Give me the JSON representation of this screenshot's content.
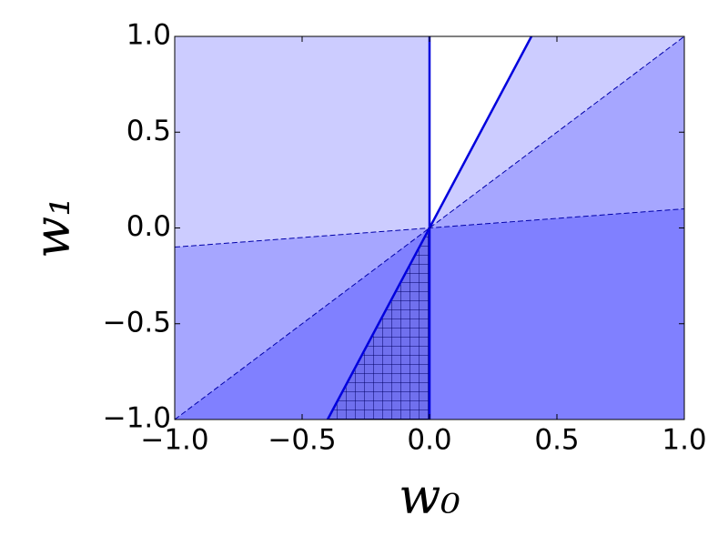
{
  "chart_data": {
    "type": "region",
    "xlabel": "w₀",
    "ylabel": "w₁",
    "xlim": [
      -1.0,
      1.0
    ],
    "ylim": [
      -1.0,
      1.0
    ],
    "xticks": [
      {
        "value": -1.0,
        "label": "−1.0"
      },
      {
        "value": -0.5,
        "label": "−0.5"
      },
      {
        "value": 0.0,
        "label": "0.0"
      },
      0.5,
      {
        "value": 1.0,
        "label": "1.0"
      }
    ],
    "yticks": [
      {
        "value": -1.0,
        "label": "−1.0"
      },
      {
        "value": -0.5,
        "label": "−0.5"
      },
      {
        "value": 0.0,
        "label": "0.0"
      },
      0.5,
      {
        "value": 1.0,
        "label": "1.0"
      }
    ],
    "regions": [
      {
        "color": "#ffffff",
        "x": [
          0,
          0,
          0.4
        ],
        "y": [
          0,
          1,
          1
        ]
      },
      {
        "color": "#ccccff",
        "x": [
          -1,
          0,
          0,
          -1
        ],
        "y": [
          1,
          1,
          0,
          -0.1
        ]
      },
      {
        "color": "#ccccff",
        "x": [
          0,
          0.4,
          1
        ],
        "y": [
          0,
          1,
          1
        ]
      },
      {
        "color": "#a6a6ff",
        "x": [
          0,
          1,
          1
        ],
        "y": [
          0,
          1,
          0.1
        ]
      },
      {
        "color": "#a6a6ff",
        "x": [
          -1,
          0,
          -1
        ],
        "y": [
          -0.1,
          0,
          -1
        ]
      },
      {
        "color": "#8080ff",
        "x": [
          0,
          1,
          1,
          0
        ],
        "y": [
          0,
          0.1,
          -1,
          -1
        ]
      },
      {
        "color": "#8080ff",
        "x": [
          -1,
          0,
          -0.4
        ],
        "y": [
          -1,
          0,
          -1
        ]
      },
      {
        "color": "#7070ee",
        "hatch": true,
        "x": [
          -0.4,
          0,
          0
        ],
        "y": [
          -1,
          0,
          -1
        ]
      }
    ],
    "lines": [
      {
        "color": "#0000dd",
        "style": "solid",
        "x": [
          0,
          0
        ],
        "y": [
          -1,
          1
        ]
      },
      {
        "color": "#0000dd",
        "style": "solid",
        "x": [
          -0.4,
          0.4
        ],
        "y": [
          -1,
          1
        ]
      },
      {
        "color": "#0000aa",
        "style": "dashed",
        "x": [
          -1,
          1
        ],
        "y": [
          -1,
          1
        ]
      },
      {
        "color": "#0000aa",
        "style": "dashed",
        "x": [
          -1,
          1
        ],
        "y": [
          -0.1,
          0.1
        ]
      }
    ]
  }
}
